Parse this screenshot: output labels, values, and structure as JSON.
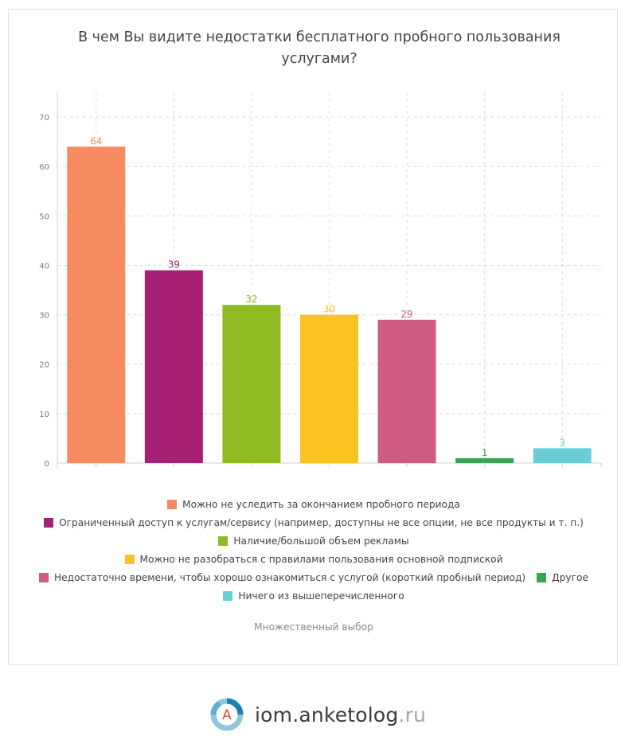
{
  "title": "В чем Вы видите недостатки бесплатного пробного пользования услугами?",
  "note": "Множественный выбор",
  "brand": {
    "name": "iom.anketolog",
    "tld": ".ru",
    "logo_letter": "A"
  },
  "chart_data": {
    "type": "bar",
    "ylim": [
      0,
      75
    ],
    "yticks": [
      0,
      10,
      20,
      30,
      40,
      50,
      60,
      70
    ],
    "grid": true,
    "legend_position": "bottom",
    "categories": [
      "Можно не уследить за окончанием пробного периода",
      "Ограниченный доступ к услугам/сервису (например, доступны не все опции, не все продукты и т. п.)",
      "Наличие/большой объем рекламы",
      "Можно не разобраться с правилами пользования основной подпиской",
      "Недостаточно времени, чтобы хорошо ознакомиться с услугой (короткий пробный период)",
      "Другое",
      "Ничего из вышеперечисленного"
    ],
    "values": [
      64,
      39,
      32,
      30,
      29,
      1,
      3
    ],
    "colors": [
      "#f58b5f",
      "#a62074",
      "#8fbb23",
      "#f9c321",
      "#d05b83",
      "#3aa453",
      "#67ced8"
    ]
  },
  "legend_rows": [
    [
      0
    ],
    [
      1
    ],
    [
      2
    ],
    [
      3
    ],
    [
      4,
      5
    ],
    [
      6
    ]
  ]
}
